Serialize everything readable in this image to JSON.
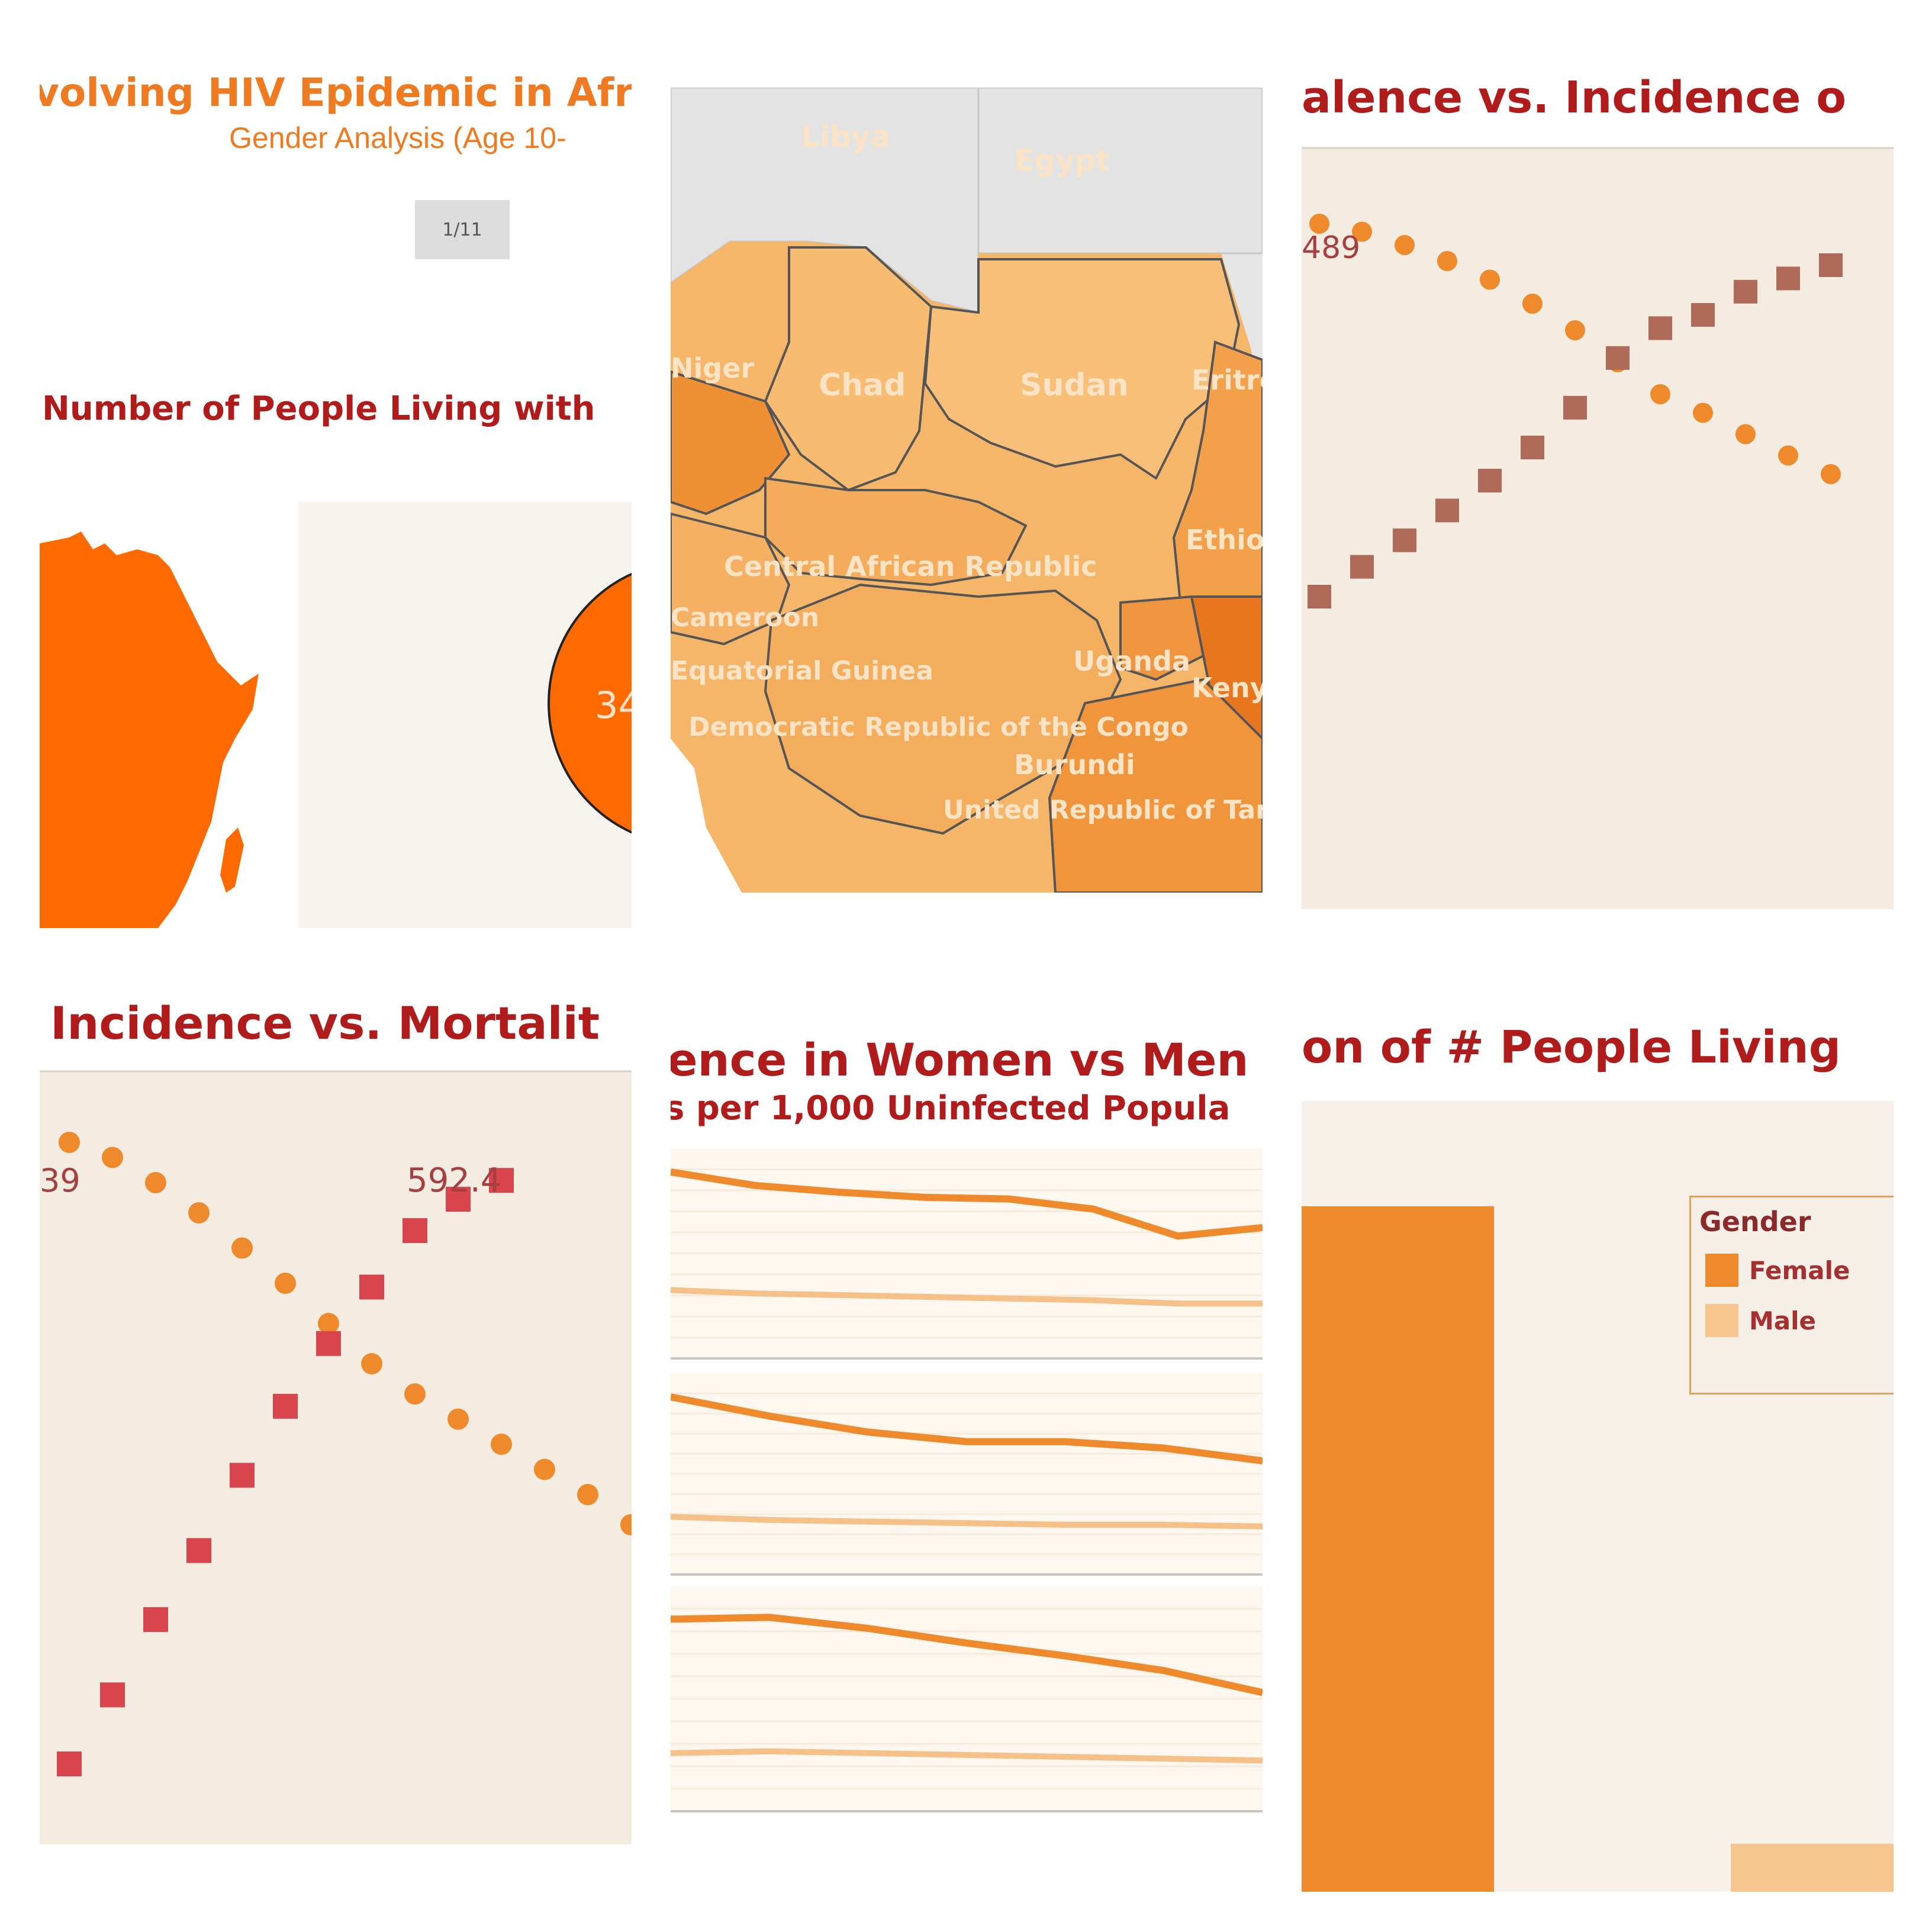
{
  "colors": {
    "title_red": "#b01c1c",
    "title_orange": "#ee7b22",
    "orange_dark": "#ff6a00",
    "orange_mid": "#ee8a2c",
    "orange_light": "#f6c089",
    "brown_square": "#b06a5a",
    "red_square": "#d9454d",
    "plot_bg": "#f4ece0"
  },
  "panel1": {
    "title": "volving HIV Epidemic in Afr",
    "subtitle": "Gender Analysis (Age 10-",
    "page_indicator": "1/11",
    "section_title": "Number of People Living with",
    "bubble_label": "34"
  },
  "panel2": {
    "map_labels": [
      "Libya",
      "Egypt",
      "Chad",
      "Sudan",
      "Eritrea",
      "Niger",
      "Central African Republic",
      "Cameroon",
      "Equatorial Guinea",
      "Uganda",
      "Kenya",
      "Democratic Republic of the Congo",
      "Burundi",
      "United Republic of Tanzania",
      "Ethiopia"
    ]
  },
  "panel3": {
    "title": "alence vs. Incidence o",
    "value_label": "489"
  },
  "panel4": {
    "title": "Incidence vs. Mortalit",
    "value_label_left": "39",
    "value_label_right": "592.4"
  },
  "panel5": {
    "title": "ence in Women vs Men",
    "subtitle": "s per 1,000 Uninfected Popula"
  },
  "panel6": {
    "title": "on of # People Living",
    "legend_title": "Gender",
    "legend_items": [
      {
        "label": "Female",
        "color": "#ee8a2c"
      },
      {
        "label": "Male",
        "color": "#f7c58e"
      }
    ]
  },
  "chart_data": [
    {
      "type": "scatter",
      "title": "",
      "series": [
        {
          "name": "",
          "values": [
            1.0,
            0.97,
            0.92,
            0.86,
            0.79,
            0.7,
            0.6,
            0.48,
            0.36,
            0.29,
            0.21,
            0.13,
            0.06
          ]
        },
        {
          "name": "",
          "values": [
            0.0,
            0.09,
            0.17,
            0.26,
            0.35,
            0.45,
            0.57,
            0.72,
            0.81,
            0.85,
            0.92,
            0.96,
            1.0
          ]
        }
      ]
    },
    {
      "type": "scatter",
      "title": "",
      "series": [
        {
          "name": "",
          "values": [
            1.0,
            0.97,
            0.92,
            0.86,
            0.79,
            0.72,
            0.64,
            0.56,
            0.5,
            0.45,
            0.4,
            0.35,
            0.3,
            0.24,
            0.18
          ]
        },
        {
          "name": "",
          "values": [
            0.0,
            0.11,
            0.23,
            0.34,
            0.46,
            0.57,
            0.67,
            0.76,
            0.85,
            0.9,
            0.93
          ]
        }
      ]
    },
    {
      "type": "line",
      "title": "",
      "series": [
        {
          "name": "",
          "values": [
            1.0,
            0.92,
            0.88,
            0.85,
            0.84,
            0.78,
            0.62,
            0.67
          ]
        },
        {
          "name": "",
          "values": [
            0.3,
            0.28,
            0.27,
            0.26,
            0.25,
            0.24,
            0.22,
            0.22
          ]
        },
        {
          "name": "",
          "values": [
            1.0,
            0.88,
            0.78,
            0.72,
            0.72,
            0.68,
            0.6
          ]
        },
        {
          "name": "",
          "values": [
            0.25,
            0.23,
            0.22,
            0.21,
            0.2,
            0.2,
            0.19
          ]
        },
        {
          "name": "",
          "values": [
            0.95,
            0.96,
            0.9,
            0.82,
            0.75,
            0.67,
            0.55
          ]
        },
        {
          "name": "",
          "values": [
            0.22,
            0.23,
            0.22,
            0.21,
            0.2,
            0.19,
            0.18
          ]
        }
      ]
    },
    {
      "type": "bar",
      "title": "",
      "categories": [
        "Female",
        "Male"
      ],
      "values": [
        1.0,
        0.07
      ]
    }
  ]
}
